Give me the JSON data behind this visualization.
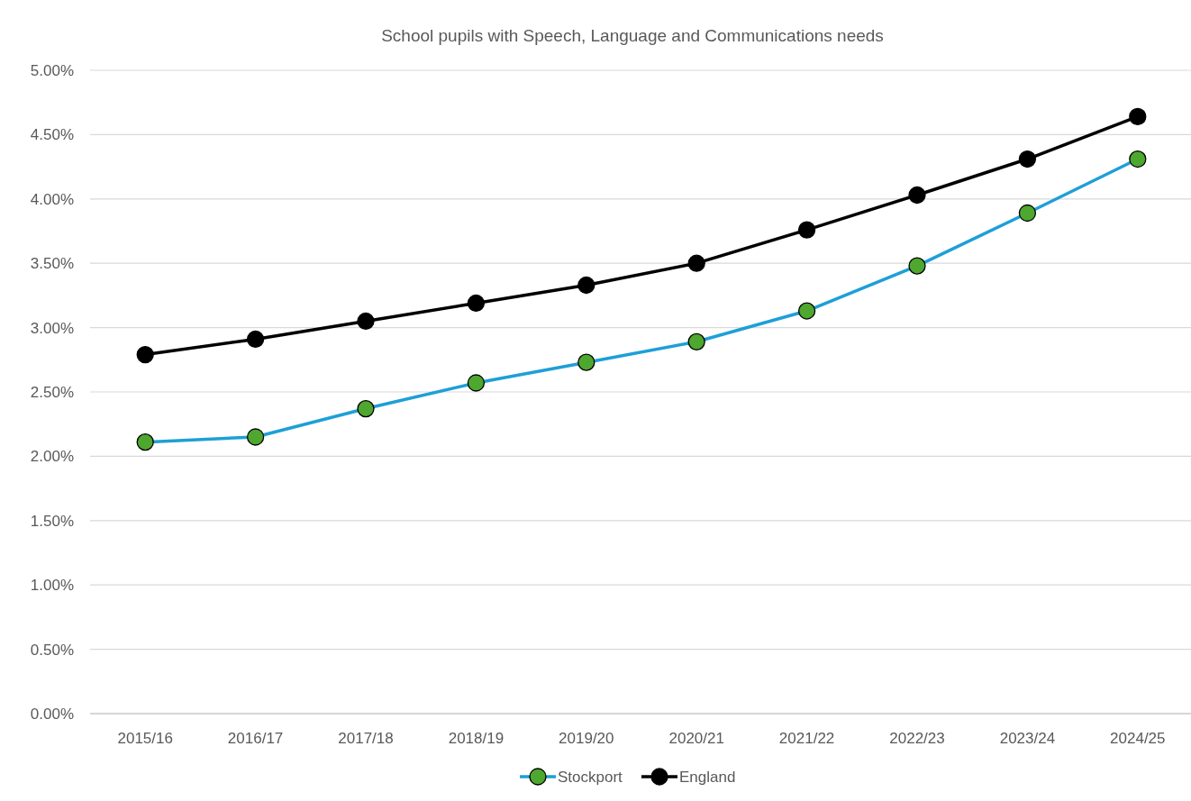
{
  "chart_data": {
    "type": "line",
    "title": "School pupils with Speech, Language and Communications needs",
    "categories": [
      "2015/16",
      "2016/17",
      "2017/18",
      "2018/19",
      "2019/20",
      "2020/21",
      "2021/22",
      "2022/23",
      "2023/24",
      "2024/25"
    ],
    "series": [
      {
        "name": "Stockport",
        "color": "#1e9fd8",
        "values": [
          2.11,
          2.15,
          2.37,
          2.57,
          2.73,
          2.89,
          3.13,
          3.48,
          3.89,
          4.31
        ]
      },
      {
        "name": "England",
        "color": "#000000",
        "values": [
          2.79,
          2.91,
          3.05,
          3.19,
          3.33,
          3.5,
          3.76,
          4.03,
          4.31,
          4.64
        ]
      }
    ],
    "ylim": [
      0,
      5
    ],
    "yticks": [
      {
        "value": 0,
        "label": "0.00%"
      },
      {
        "value": 0.5,
        "label": "0.50%"
      },
      {
        "value": 1,
        "label": "1.00%"
      },
      {
        "value": 1.5,
        "label": "1.50%"
      },
      {
        "value": 2,
        "label": "2.00%"
      },
      {
        "value": 2.5,
        "label": "2.50%"
      },
      {
        "value": 3,
        "label": "3.00%"
      },
      {
        "value": 3.5,
        "label": "3.50%"
      },
      {
        "value": 4,
        "label": "4.00%"
      },
      {
        "value": 4.5,
        "label": "4.50%"
      },
      {
        "value": 5,
        "label": "5.00%"
      }
    ],
    "grid": "y",
    "legend": "bottom",
    "marker": "circle",
    "line_style": "solid"
  }
}
